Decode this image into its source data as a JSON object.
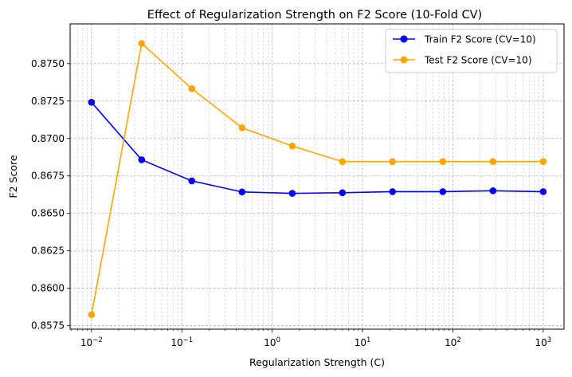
{
  "chart_data": {
    "type": "line",
    "title": "Effect of Regularization Strength on F2 Score (10-Fold CV)",
    "xlabel": "Regularization Strength (C)",
    "ylabel": "F2 Score",
    "xscale": "log",
    "xlim": [
      0.0058,
      1700
    ],
    "ylim": [
      0.85727,
      0.87765
    ],
    "grid": "major and minor, dashed light gray",
    "legend_position": "top-right",
    "x_ticks": [
      {
        "value": 0.01,
        "base": "10",
        "exp": "−2"
      },
      {
        "value": 0.1,
        "base": "10",
        "exp": "−1"
      },
      {
        "value": 1,
        "base": "10",
        "exp": "0"
      },
      {
        "value": 10,
        "base": "10",
        "exp": "1"
      },
      {
        "value": 100,
        "base": "10",
        "exp": "2"
      },
      {
        "value": 1000,
        "base": "10",
        "exp": "3"
      }
    ],
    "y_ticks": [
      "0.8575",
      "0.8600",
      "0.8625",
      "0.8650",
      "0.8675",
      "0.8700",
      "0.8725",
      "0.8750"
    ],
    "x": [
      0.01,
      0.0359,
      0.129,
      0.464,
      1.67,
      5.99,
      21.5,
      77.4,
      278,
      1000
    ],
    "series": [
      {
        "name": "Train F2 Score (CV=10)",
        "color": "#0000ff",
        "values": [
          0.87242,
          0.86858,
          0.86717,
          0.86643,
          0.86634,
          0.86638,
          0.86645,
          0.86645,
          0.86651,
          0.86645
        ]
      },
      {
        "name": "Test F2 Score (CV=10)",
        "color": "#ffa500",
        "values": [
          0.85824,
          0.87635,
          0.87333,
          0.87072,
          0.8695,
          0.86846,
          0.86846,
          0.86846,
          0.86846,
          0.86846
        ]
      }
    ]
  }
}
